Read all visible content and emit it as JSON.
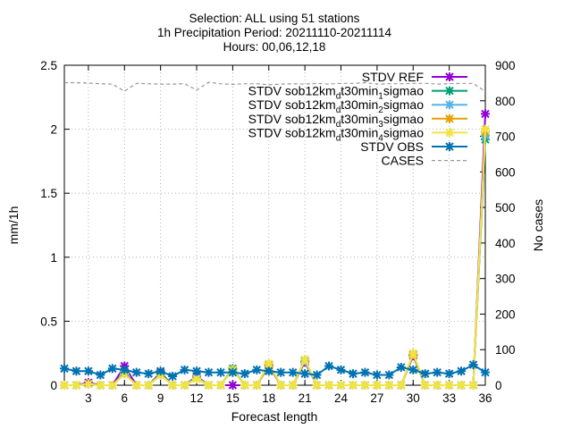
{
  "chart_data": {
    "type": "line",
    "title": "Selection: ALL using    51 stations",
    "subtitle": "1h Precipitation   Period: 20211110-20211114",
    "hours": "Hours: 00,06,12,18",
    "xlabel": "Forecast length",
    "ylabel": "mm/1h",
    "y2label": "No cases",
    "xlim": [
      1,
      36
    ],
    "ylim": [
      0,
      2.5
    ],
    "y2lim": [
      0,
      900
    ],
    "x_ticks": [
      "3",
      "6",
      "9",
      "12",
      "15",
      "18",
      "21",
      "24",
      "27",
      "30",
      "33",
      "36"
    ],
    "y_ticks": [
      "0",
      "0.5",
      "1",
      "1.5",
      "2",
      "2.5"
    ],
    "y2_ticks": [
      "0",
      "100",
      "200",
      "300",
      "400",
      "500",
      "600",
      "700",
      "800",
      "900"
    ],
    "grid": true,
    "legend_position": "top-right",
    "x": [
      1,
      2,
      3,
      4,
      5,
      6,
      7,
      8,
      9,
      10,
      11,
      12,
      13,
      14,
      15,
      16,
      17,
      18,
      19,
      20,
      21,
      22,
      23,
      24,
      25,
      26,
      27,
      28,
      29,
      30,
      31,
      32,
      33,
      34,
      35,
      36
    ],
    "series": [
      {
        "name": "STDV REF",
        "label_parts": [
          "STDV REF"
        ],
        "color": "#9400d3",
        "marker": "x-star",
        "axis": "y",
        "values": [
          0,
          0,
          0.02,
          0,
          0,
          0.15,
          0,
          0,
          0.1,
          0,
          0,
          0.07,
          0,
          0,
          0,
          0,
          0,
          0.15,
          0,
          0,
          0.18,
          0,
          0,
          0,
          0,
          0,
          0,
          0,
          0,
          0.23,
          0,
          0,
          0,
          0,
          0,
          2.12
        ]
      },
      {
        "name": "STDV sob12kmdt30min1sigmao",
        "label_parts": [
          "STDV sob12km",
          "d",
          "t30min",
          "1",
          "sigmao"
        ],
        "color": "#009e73",
        "marker": "x-star",
        "axis": "y",
        "values": [
          0,
          0,
          0.01,
          0,
          0,
          0.1,
          0,
          0,
          0.09,
          0,
          0,
          0.06,
          0,
          0,
          0.13,
          0,
          0,
          0.16,
          0,
          0,
          0.19,
          0,
          0,
          0,
          0,
          0,
          0,
          0,
          0,
          0.24,
          0,
          0,
          0,
          0,
          0,
          1.92
        ]
      },
      {
        "name": "STDV sob12kmdt30min2sigmao",
        "label_parts": [
          "STDV sob12km",
          "d",
          "t30min",
          "2",
          "sigmao"
        ],
        "color": "#56b4e9",
        "marker": "x-star",
        "axis": "y",
        "values": [
          0,
          0,
          0.01,
          0,
          0,
          0.09,
          0,
          0,
          0.08,
          0,
          0,
          0.06,
          0,
          0,
          0.12,
          0,
          0,
          0.16,
          0,
          0,
          0.19,
          0,
          0,
          0,
          0,
          0,
          0,
          0,
          0,
          0.24,
          0,
          0,
          0,
          0,
          0,
          1.95
        ]
      },
      {
        "name": "STDV sob12kmdt30min3sigmao",
        "label_parts": [
          "STDV sob12km",
          "d",
          "t30min",
          "3",
          "sigmao"
        ],
        "color": "#e69f00",
        "marker": "x-star",
        "axis": "y",
        "values": [
          0,
          0,
          0.01,
          0,
          0,
          0.09,
          0,
          0,
          0.08,
          0,
          0,
          0.05,
          0,
          0,
          0.12,
          0,
          0,
          0.16,
          0,
          0,
          0.2,
          0,
          0,
          0,
          0,
          0,
          0,
          0,
          0,
          0.24,
          0,
          0,
          0,
          0,
          0,
          1.98
        ]
      },
      {
        "name": "STDV sob12kmdt30min4sigmao",
        "label_parts": [
          "STDV sob12km",
          "d",
          "t30min",
          "4",
          "sigmao"
        ],
        "color": "#f0e442",
        "marker": "x-star",
        "axis": "y",
        "values": [
          0,
          0,
          0.01,
          0,
          0,
          0.09,
          0,
          0,
          0.08,
          0,
          0,
          0.05,
          0,
          0,
          0.12,
          0,
          0,
          0.17,
          0,
          0,
          0.2,
          0,
          0,
          0,
          0,
          0,
          0,
          0,
          0,
          0.25,
          0,
          0,
          0,
          0,
          0,
          2.0
        ]
      },
      {
        "name": "STDV OBS",
        "label_parts": [
          "STDV OBS"
        ],
        "color": "#0072b2",
        "marker": "x-star",
        "axis": "y",
        "values": [
          0.13,
          0.11,
          0.11,
          0.08,
          0.13,
          0.12,
          0.1,
          0.09,
          0.11,
          0.07,
          0.12,
          0.11,
          0.1,
          0.1,
          0.1,
          0.09,
          0.12,
          0.11,
          0.1,
          0.1,
          0.09,
          0.08,
          0.15,
          0.12,
          0.09,
          0.1,
          0.08,
          0.08,
          0.14,
          0.12,
          0.09,
          0.1,
          0.09,
          0.11,
          0.16,
          0.1
        ]
      },
      {
        "name": "CASES",
        "label_parts": [
          "CASES"
        ],
        "color": "#999999",
        "marker": "none",
        "dashed": true,
        "axis": "y2",
        "values": [
          851,
          851,
          850,
          848,
          847,
          827,
          849,
          848,
          847,
          847,
          848,
          830,
          852,
          848,
          846,
          848,
          848,
          845,
          847,
          848,
          847,
          849,
          847,
          849,
          849,
          851,
          847,
          848,
          848,
          849,
          849,
          847,
          848,
          849,
          849,
          826
        ]
      }
    ]
  }
}
